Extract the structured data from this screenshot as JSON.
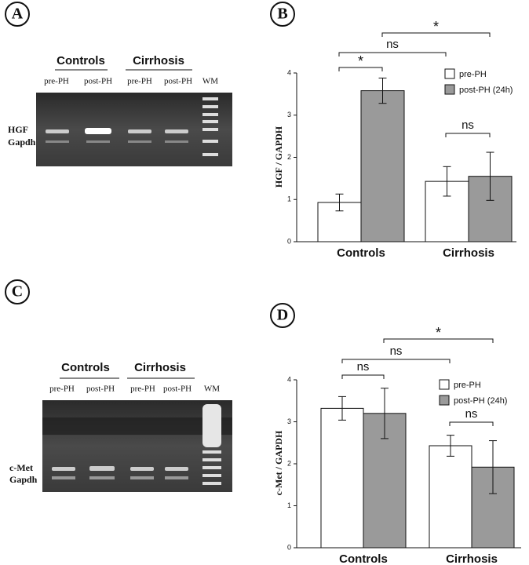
{
  "panel_labels": [
    "A",
    "B",
    "C",
    "D"
  ],
  "gels": [
    {
      "groups": [
        "Controls",
        "Cirrhosis"
      ],
      "lanes": [
        "pre-PH",
        "post-PH",
        "pre-PH",
        "post-PH",
        "WM"
      ],
      "bands": [
        "HGF",
        "Gapdh"
      ]
    },
    {
      "groups": [
        "Controls",
        "Cirrhosis"
      ],
      "lanes": [
        "pre-PH",
        "post-PH",
        "pre-PH",
        "post-PH",
        "WM"
      ],
      "bands": [
        "c-Met",
        "Gapdh"
      ]
    }
  ],
  "chart_data": [
    {
      "type": "bar",
      "y_label": "HGF / GAPDH",
      "categories": [
        "Controls",
        "Cirrhosis"
      ],
      "series": [
        {
          "name": "pre-PH",
          "color": "#ffffff",
          "values": [
            0.93,
            1.43
          ],
          "errors": [
            0.2,
            0.35
          ]
        },
        {
          "name": "post-PH (24h)",
          "color": "#9a9a9a",
          "values": [
            3.58,
            1.55
          ],
          "errors": [
            0.3,
            0.57
          ]
        }
      ],
      "ylim": [
        0,
        4
      ],
      "yticks": [
        0,
        1,
        2,
        3,
        4
      ],
      "legend": "upper right",
      "annotations": [
        "*",
        "ns",
        "*",
        "ns"
      ]
    },
    {
      "type": "bar",
      "y_label": "c-Met / GAPDH",
      "categories": [
        "Controls",
        "Cirrhosis"
      ],
      "series": [
        {
          "name": "pre-PH",
          "color": "#ffffff",
          "values": [
            3.32,
            2.43
          ],
          "errors": [
            0.28,
            0.25
          ]
        },
        {
          "name": "post-PH (24h)",
          "color": "#9a9a9a",
          "values": [
            3.2,
            1.92
          ],
          "errors": [
            0.6,
            0.63
          ]
        }
      ],
      "ylim": [
        0,
        4
      ],
      "yticks": [
        0,
        1,
        2,
        3,
        4
      ],
      "legend": "upper right",
      "annotations": [
        "ns",
        "ns",
        "*",
        "ns"
      ]
    }
  ]
}
